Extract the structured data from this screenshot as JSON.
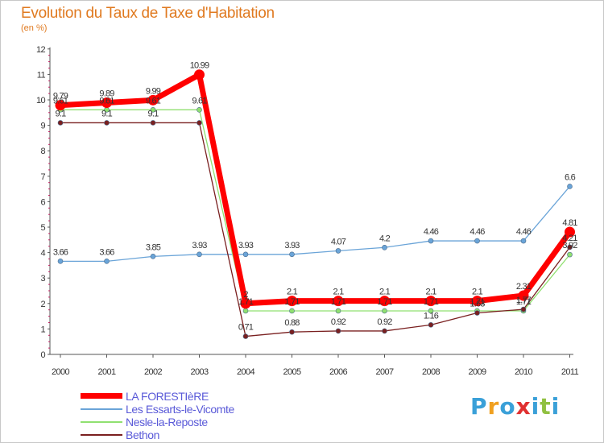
{
  "chart_data": {
    "type": "line",
    "title": "Evolution du Taux de Taxe d'Habitation",
    "subtitle": "(en %)",
    "x": [
      "2000",
      "2001",
      "2002",
      "2003",
      "2004",
      "2005",
      "2006",
      "2007",
      "2008",
      "2009",
      "2010",
      "2011"
    ],
    "ylim": [
      0,
      12
    ],
    "yticks": [
      "0",
      "1",
      "2",
      "3",
      "4",
      "5",
      "6",
      "7",
      "8",
      "9",
      "10",
      "11",
      "12"
    ],
    "grid": false,
    "legend_position": "bottom-left",
    "series": [
      {
        "name": "Les Essarts-le-Vicomte",
        "color": "#6aa4d8",
        "values": [
          3.66,
          3.66,
          3.85,
          3.93,
          3.93,
          3.93,
          4.07,
          4.2,
          4.46,
          4.46,
          4.46,
          6.6
        ],
        "labels": [
          "3.66",
          "3.66",
          "3.85",
          "3.93",
          "3.93",
          "3.93",
          "4.07",
          "4.2",
          "4.46",
          "4.46",
          "4.46",
          "6.6"
        ]
      },
      {
        "name": "Nesle-la-Reposte",
        "color": "#90e070",
        "values": [
          9.61,
          9.61,
          9.61,
          9.61,
          1.71,
          1.71,
          1.71,
          1.71,
          1.71,
          1.71,
          1.71,
          3.92
        ],
        "labels": [
          "9.61",
          "9.61",
          "9.61",
          "9.61",
          "1.71",
          "1.71",
          "1.71",
          "1.71",
          "1.71",
          "1.71",
          "1.71",
          "3.92"
        ]
      },
      {
        "name": "Bethon",
        "color": "#7a2020",
        "values": [
          9.1,
          9.1,
          9.1,
          9.1,
          0.71,
          0.88,
          0.92,
          0.92,
          1.16,
          1.63,
          1.77,
          4.21
        ],
        "labels": [
          "9.1",
          "9.1",
          "9.1",
          "",
          "0.71",
          "0.88",
          "0.92",
          "0.92",
          "1.16",
          "1.63",
          "1.77",
          "4.21"
        ]
      },
      {
        "name": "LA FORESTIèRE",
        "color": "#ff0000",
        "values": [
          9.79,
          9.89,
          9.99,
          10.99,
          2,
          2.1,
          2.1,
          2.1,
          2.1,
          2.1,
          2.31,
          4.81
        ],
        "labels": [
          "9.79",
          "9.89",
          "9.99",
          "10.99",
          "2",
          "2.1",
          "2.1",
          "2.1",
          "2.1",
          "2.1",
          "2.31",
          "4.81"
        ]
      }
    ],
    "legend": [
      "LA FORESTIèRE",
      "Les Essarts-le-Vicomte",
      "Nesle-la-Reposte",
      "Bethon"
    ]
  },
  "logo": {
    "letters": [
      {
        "ch": "P",
        "color": "#3aa0d8"
      },
      {
        "ch": "r",
        "color": "#f0a020"
      },
      {
        "ch": "o",
        "color": "#3aa0d8"
      },
      {
        "ch": "x",
        "color": "#e03030"
      },
      {
        "ch": "i",
        "color": "#3aa0d8"
      },
      {
        "ch": "t",
        "color": "#90c040"
      },
      {
        "ch": "i",
        "color": "#3aa0d8"
      }
    ]
  }
}
